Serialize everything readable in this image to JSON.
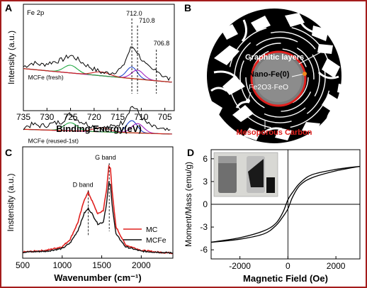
{
  "chart_data": [
    {
      "panel": "A",
      "type": "line",
      "xlabel": "Binding Energy(eV)",
      "ylabel": "Intensity (a.u.)",
      "xlim": [
        735,
        703
      ],
      "xticks": [
        735,
        730,
        725,
        720,
        715,
        710,
        705
      ],
      "annotations": [
        "Fe 2p",
        "712.0",
        "710.8",
        "706.8"
      ],
      "peak_markers": [
        712.0,
        710.8,
        706.8
      ],
      "series": [
        {
          "name": "MCFe (fresh)",
          "x": [
            735,
            733,
            731,
            729,
            727,
            725,
            724,
            722,
            720,
            718,
            716,
            714,
            712.8,
            712,
            711,
            710.5,
            709,
            707.5,
            706.8,
            705.5,
            704
          ],
          "y": [
            0.8,
            0.86,
            0.83,
            0.87,
            0.9,
            0.98,
            0.94,
            0.84,
            0.76,
            0.7,
            0.71,
            0.78,
            1.0,
            1.12,
            1.05,
            0.98,
            0.82,
            0.73,
            0.77,
            0.66,
            0.6
          ]
        },
        {
          "name": "MCFe (reused-1st)",
          "x": [
            735,
            733,
            731,
            729,
            727,
            725,
            724,
            722,
            720,
            718,
            716,
            714,
            712.8,
            712,
            711,
            710.5,
            709,
            707.5,
            706.8,
            705.5,
            704
          ],
          "y": [
            0.28,
            0.32,
            0.3,
            0.33,
            0.36,
            0.48,
            0.41,
            0.34,
            0.29,
            0.27,
            0.29,
            0.35,
            0.5,
            0.6,
            0.54,
            0.48,
            0.35,
            0.28,
            0.27,
            0.24,
            0.22
          ]
        }
      ]
    },
    {
      "panel": "B",
      "type": "diagram",
      "labels": [
        "Graphitic layers",
        "Nano-Fe(0)",
        "Fe2O3·FeO",
        "Mesoporous Carbon"
      ]
    },
    {
      "panel": "C",
      "type": "line",
      "xlabel": "Wavenumber (cm⁻¹)",
      "ylabel": "Instensity (a.u.)",
      "xlim": [
        500,
        2400
      ],
      "xticks": [
        500,
        1000,
        1500,
        2000
      ],
      "annotations": [
        "D band",
        "G band"
      ],
      "series": [
        {
          "name": "MC",
          "color": "#e0201e",
          "x": [
            500,
            800,
            1000,
            1100,
            1200,
            1280,
            1330,
            1380,
            1450,
            1520,
            1560,
            1590,
            1610,
            1630,
            1680,
            1800,
            2000,
            2200,
            2400
          ],
          "y": [
            0.02,
            0.04,
            0.08,
            0.16,
            0.35,
            0.6,
            0.68,
            0.58,
            0.44,
            0.48,
            0.7,
            0.97,
            0.95,
            0.7,
            0.3,
            0.1,
            0.04,
            0.02,
            0.01
          ]
        },
        {
          "name": "MCFe",
          "color": "#111111",
          "x": [
            500,
            800,
            1000,
            1100,
            1200,
            1280,
            1330,
            1380,
            1450,
            1520,
            1560,
            1590,
            1610,
            1630,
            1680,
            1800,
            2000,
            2200,
            2400
          ],
          "y": [
            0.02,
            0.03,
            0.06,
            0.12,
            0.26,
            0.45,
            0.5,
            0.44,
            0.33,
            0.35,
            0.55,
            0.78,
            0.76,
            0.55,
            0.22,
            0.08,
            0.03,
            0.02,
            0.01
          ]
        }
      ]
    },
    {
      "panel": "D",
      "type": "line",
      "xlabel": "Magnetic Field (Oe)",
      "ylabel": "Moment/Mass (emu/g)",
      "xlim": [
        -3200,
        3000
      ],
      "ylim": [
        -7.2,
        7.2
      ],
      "xticks": [
        -2000,
        0,
        2000
      ],
      "yticks": [
        -6,
        -3,
        0,
        3,
        6
      ],
      "inset": "photo of vials with magnet",
      "series": [
        {
          "name": "upper branch",
          "x": [
            -3200,
            -2000,
            -1000,
            -500,
            -200,
            0,
            200,
            500,
            1000,
            2000,
            3000
          ],
          "y": [
            -5.0,
            -4.4,
            -3.5,
            -2.5,
            -1.0,
            0.6,
            1.6,
            2.8,
            3.9,
            4.6,
            5.0
          ]
        },
        {
          "name": "lower branch",
          "x": [
            -3200,
            -2000,
            -1000,
            -500,
            -200,
            0,
            200,
            500,
            1000,
            2000,
            3000
          ],
          "y": [
            -5.0,
            -4.6,
            -3.9,
            -2.8,
            -1.6,
            -0.6,
            1.0,
            2.5,
            3.5,
            4.4,
            5.0
          ]
        }
      ]
    }
  ],
  "panels": {
    "a": {
      "letter": "A"
    },
    "b": {
      "letter": "B"
    },
    "c": {
      "letter": "C"
    },
    "d": {
      "letter": "D"
    }
  }
}
